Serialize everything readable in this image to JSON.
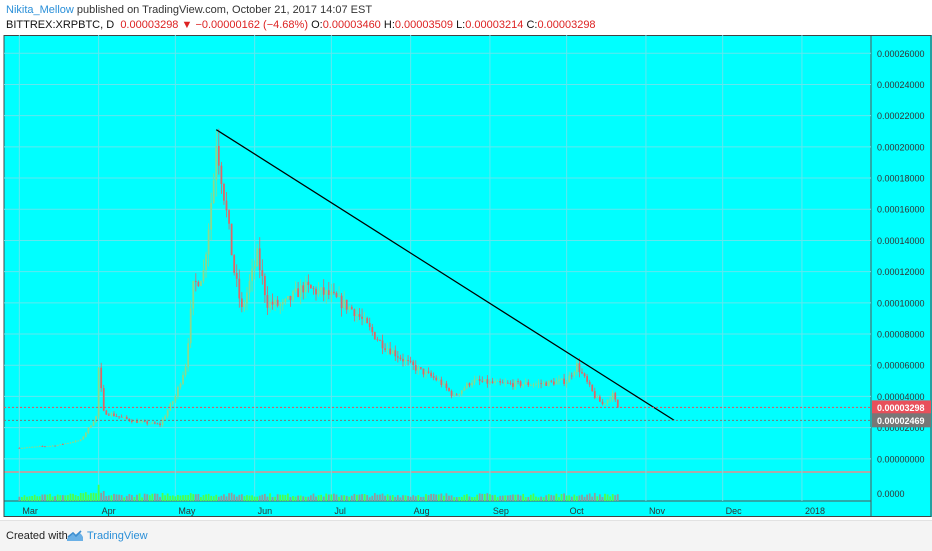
{
  "header": {
    "author": "Nikita_Mellow",
    "published": " published on TradingView.com, October 21, 2017 14:07 EST",
    "symbol": "BITTREX:XRPBTC, D",
    "last": "0.00003298",
    "change_arrow": "▼",
    "change": "−0.00000162 (−4.68%)",
    "o_label": "O:",
    "o_value": "0.00003460",
    "h_label": "H:",
    "h_value": "0.00003509",
    "l_label": "L:",
    "l_value": "0.00003214",
    "c_label": "C:",
    "c_value": "0.00003298"
  },
  "colors": {
    "background": "#00ffff",
    "grid": "#63e6ee",
    "up": "#8cd98c",
    "down": "#e06666",
    "wick": "#555555",
    "volume_up": "#4cff4c",
    "volume_down": "#8f9c9c",
    "trendline": "#000000",
    "last_price_tag": "#e8505b",
    "trend_price_tag": "#777777"
  },
  "chart_data": {
    "type": "candlestick",
    "symbol": "BITTREX:XRPBTC",
    "interval": "D",
    "x_tick_labels": [
      "Mar",
      "Apr",
      "May",
      "Jun",
      "Jul",
      "Aug",
      "Sep",
      "Oct",
      "Nov",
      "Dec",
      "2018"
    ],
    "y_tick_labels": [
      "0.00026000",
      "0.00024000",
      "0.00022000",
      "0.00020000",
      "0.00018000",
      "0.00016000",
      "0.00014000",
      "0.00012000",
      "0.00010000",
      "0.00008000",
      "0.00006000",
      "0.00004000",
      "0.00002000",
      "0.00000000"
    ],
    "ylim": [
      -7.8e-06,
      0.0002717
    ],
    "volume_axis_label": "0.0000",
    "price_tags": [
      {
        "value": "0.00003298",
        "role": "last"
      },
      {
        "value": "0.00002469",
        "role": "trendline"
      }
    ],
    "trendline": {
      "start": [
        "2017-05-17",
        0.000211
      ],
      "end": [
        "2017-11-12",
        2.47e-05
      ]
    },
    "grid": true,
    "series": [
      {
        "date": "2017-03-01",
        "close": 7e-06
      },
      {
        "date": "2017-03-15",
        "close": 8.5e-06
      },
      {
        "date": "2017-03-25",
        "close": 1.2e-05
      },
      {
        "date": "2017-03-31",
        "close": 2.7e-05
      },
      {
        "date": "2017-04-01",
        "close": 5.8e-05
      },
      {
        "date": "2017-04-03",
        "close": 3e-05
      },
      {
        "date": "2017-04-15",
        "close": 2.4e-05
      },
      {
        "date": "2017-04-25",
        "close": 2.2e-05
      },
      {
        "date": "2017-05-01",
        "close": 4e-05
      },
      {
        "date": "2017-05-05",
        "close": 6e-05
      },
      {
        "date": "2017-05-08",
        "close": 0.00011
      },
      {
        "date": "2017-05-12",
        "close": 0.00012
      },
      {
        "date": "2017-05-16",
        "close": 0.00018
      },
      {
        "date": "2017-05-17",
        "close": 0.000205
      },
      {
        "date": "2017-05-20",
        "close": 0.00017
      },
      {
        "date": "2017-05-24",
        "close": 0.00012
      },
      {
        "date": "2017-05-27",
        "close": 9.5e-05
      },
      {
        "date": "2017-06-02",
        "close": 0.00013
      },
      {
        "date": "2017-06-06",
        "close": 0.0001
      },
      {
        "date": "2017-06-12",
        "close": 9.8e-05
      },
      {
        "date": "2017-06-20",
        "close": 0.00011
      },
      {
        "date": "2017-06-30",
        "close": 0.000105
      },
      {
        "date": "2017-07-10",
        "close": 9.5e-05
      },
      {
        "date": "2017-07-20",
        "close": 7.5e-05
      },
      {
        "date": "2017-08-01",
        "close": 6e-05
      },
      {
        "date": "2017-08-12",
        "close": 5e-05
      },
      {
        "date": "2017-08-18",
        "close": 4e-05
      },
      {
        "date": "2017-08-25",
        "close": 5e-05
      },
      {
        "date": "2017-09-05",
        "close": 4.8e-05
      },
      {
        "date": "2017-09-20",
        "close": 4.8e-05
      },
      {
        "date": "2017-10-01",
        "close": 5e-05
      },
      {
        "date": "2017-10-05",
        "close": 6e-05
      },
      {
        "date": "2017-10-12",
        "close": 4e-05
      },
      {
        "date": "2017-10-15",
        "close": 3.5e-05
      },
      {
        "date": "2017-10-19",
        "close": 4.1e-05
      },
      {
        "date": "2017-10-21",
        "close": 3.3e-05
      }
    ]
  },
  "footer": {
    "created_with": "Created with",
    "brand": "TradingView"
  }
}
